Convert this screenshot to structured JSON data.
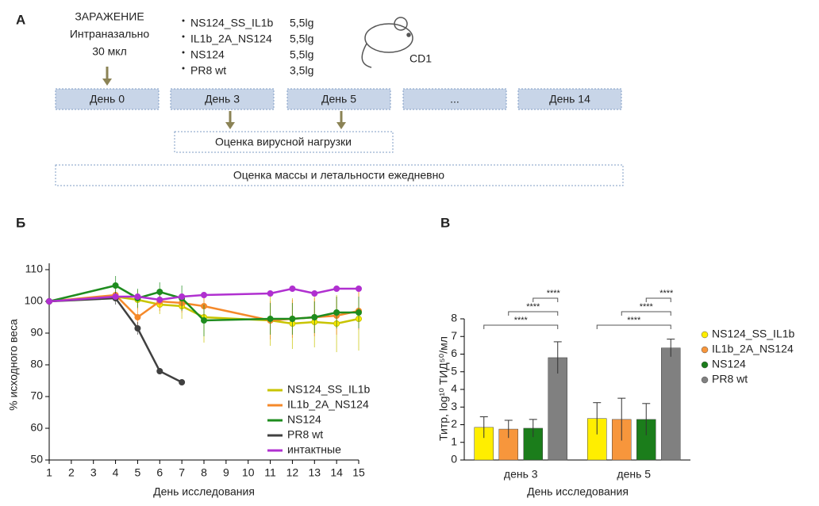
{
  "diagram": {
    "panel_label": "А",
    "infection": [
      "ЗАРАЖЕНИЕ",
      "Интраназально",
      "30 мкл"
    ],
    "strains": [
      {
        "name": "NS124_SS_IL1b",
        "dose": "5,5lg"
      },
      {
        "name": "IL1b_2A_NS124",
        "dose": "5,5lg"
      },
      {
        "name": "NS124",
        "dose": "5,5lg"
      },
      {
        "name": "PR8 wt",
        "dose": "3,5lg"
      }
    ],
    "animal": "CD1",
    "days": [
      "День 0",
      "День 3",
      "День 5",
      "...",
      "День 14"
    ],
    "viral_load": "Оценка вирусной нагрузки",
    "daily": "Оценка массы и летальности ежедневно"
  },
  "chart_data": [
    {
      "type": "line",
      "panel_label": "Б",
      "x_label": "День исследования",
      "y_label": "% исходного веса",
      "x": [
        1,
        4,
        5,
        6,
        7,
        8,
        11,
        12,
        13,
        14,
        15
      ],
      "xlim": [
        1,
        15
      ],
      "xticks": [
        1,
        2,
        3,
        4,
        5,
        6,
        7,
        8,
        9,
        10,
        11,
        12,
        13,
        14,
        15
      ],
      "ylim": [
        50,
        110
      ],
      "yticks": [
        50,
        60,
        70,
        80,
        90,
        100,
        110
      ],
      "legend": "lower right",
      "series": [
        {
          "name": "NS124_SS_IL1b",
          "color": "#c8c400",
          "marker": "#ffee00",
          "values": [
            100,
            101.5,
            100.5,
            99,
            98.5,
            95,
            94,
            93,
            93.5,
            93,
            94.5
          ],
          "errors": [
            0.5,
            1.5,
            3,
            3,
            4,
            8,
            8,
            8,
            8,
            9,
            10
          ]
        },
        {
          "name": "IL1b_2A_NS124",
          "color": "#f5892a",
          "marker": "#f5892a",
          "values": [
            100,
            102,
            95,
            100,
            99.5,
            98.5,
            94,
            94.5,
            95,
            95.5,
            97
          ],
          "errors": [
            0.5,
            2,
            4,
            3,
            3,
            4,
            6,
            6,
            6,
            6,
            6
          ]
        },
        {
          "name": "NS124",
          "color": "#1e8c1e",
          "marker": "#1e8c1e",
          "values": [
            100,
            105,
            101,
            103,
            101,
            94,
            94.5,
            94.5,
            95,
            96.5,
            96.5
          ],
          "errors": [
            0.5,
            3,
            3,
            3,
            4,
            5,
            5,
            5,
            5,
            5,
            5
          ]
        },
        {
          "name": "PR8 wt",
          "color": "#404040",
          "marker": "#404040",
          "values": [
            100,
            101,
            91.5,
            78,
            74.5,
            null,
            null,
            null,
            null,
            null,
            null
          ],
          "errors": [
            0.5,
            2,
            2,
            1,
            1,
            null,
            null,
            null,
            null,
            null,
            null
          ]
        },
        {
          "name": "интактные",
          "color": "#b030d0",
          "marker": "#b030d0",
          "values": [
            100,
            101.5,
            101.5,
            100.5,
            101.5,
            102,
            102.5,
            104,
            102.5,
            104,
            104
          ],
          "errors": [
            0.5,
            1,
            1,
            1,
            1,
            1,
            1,
            1,
            1,
            1,
            1
          ]
        }
      ]
    },
    {
      "type": "bar",
      "panel_label": "В",
      "x_label": "День исследования",
      "y_label": "Титр, log¹⁰ ТИД⁵⁰/мл",
      "categories": [
        "день 3",
        "день 5"
      ],
      "ylim": [
        0,
        8
      ],
      "yticks": [
        0,
        1,
        2,
        3,
        4,
        5,
        6,
        7,
        8
      ],
      "legend": "right",
      "series": [
        {
          "name": "NS124_SS_IL1b",
          "color": "#ffee00",
          "values": [
            1.85,
            2.35
          ],
          "errors": [
            0.6,
            0.9
          ]
        },
        {
          "name": "IL1b_2A_NS124",
          "color": "#f7963c",
          "values": [
            1.75,
            2.3
          ],
          "errors": [
            0.5,
            1.2
          ]
        },
        {
          "name": "NS124",
          "color": "#1b7d1b",
          "values": [
            1.8,
            2.3
          ],
          "errors": [
            0.5,
            0.9
          ]
        },
        {
          "name": "PR8 wt",
          "color": "#808080",
          "values": [
            5.8,
            6.35
          ],
          "errors": [
            0.9,
            0.5
          ]
        }
      ],
      "significance": [
        "****",
        "****",
        "****",
        "****",
        "****",
        "****"
      ]
    }
  ]
}
